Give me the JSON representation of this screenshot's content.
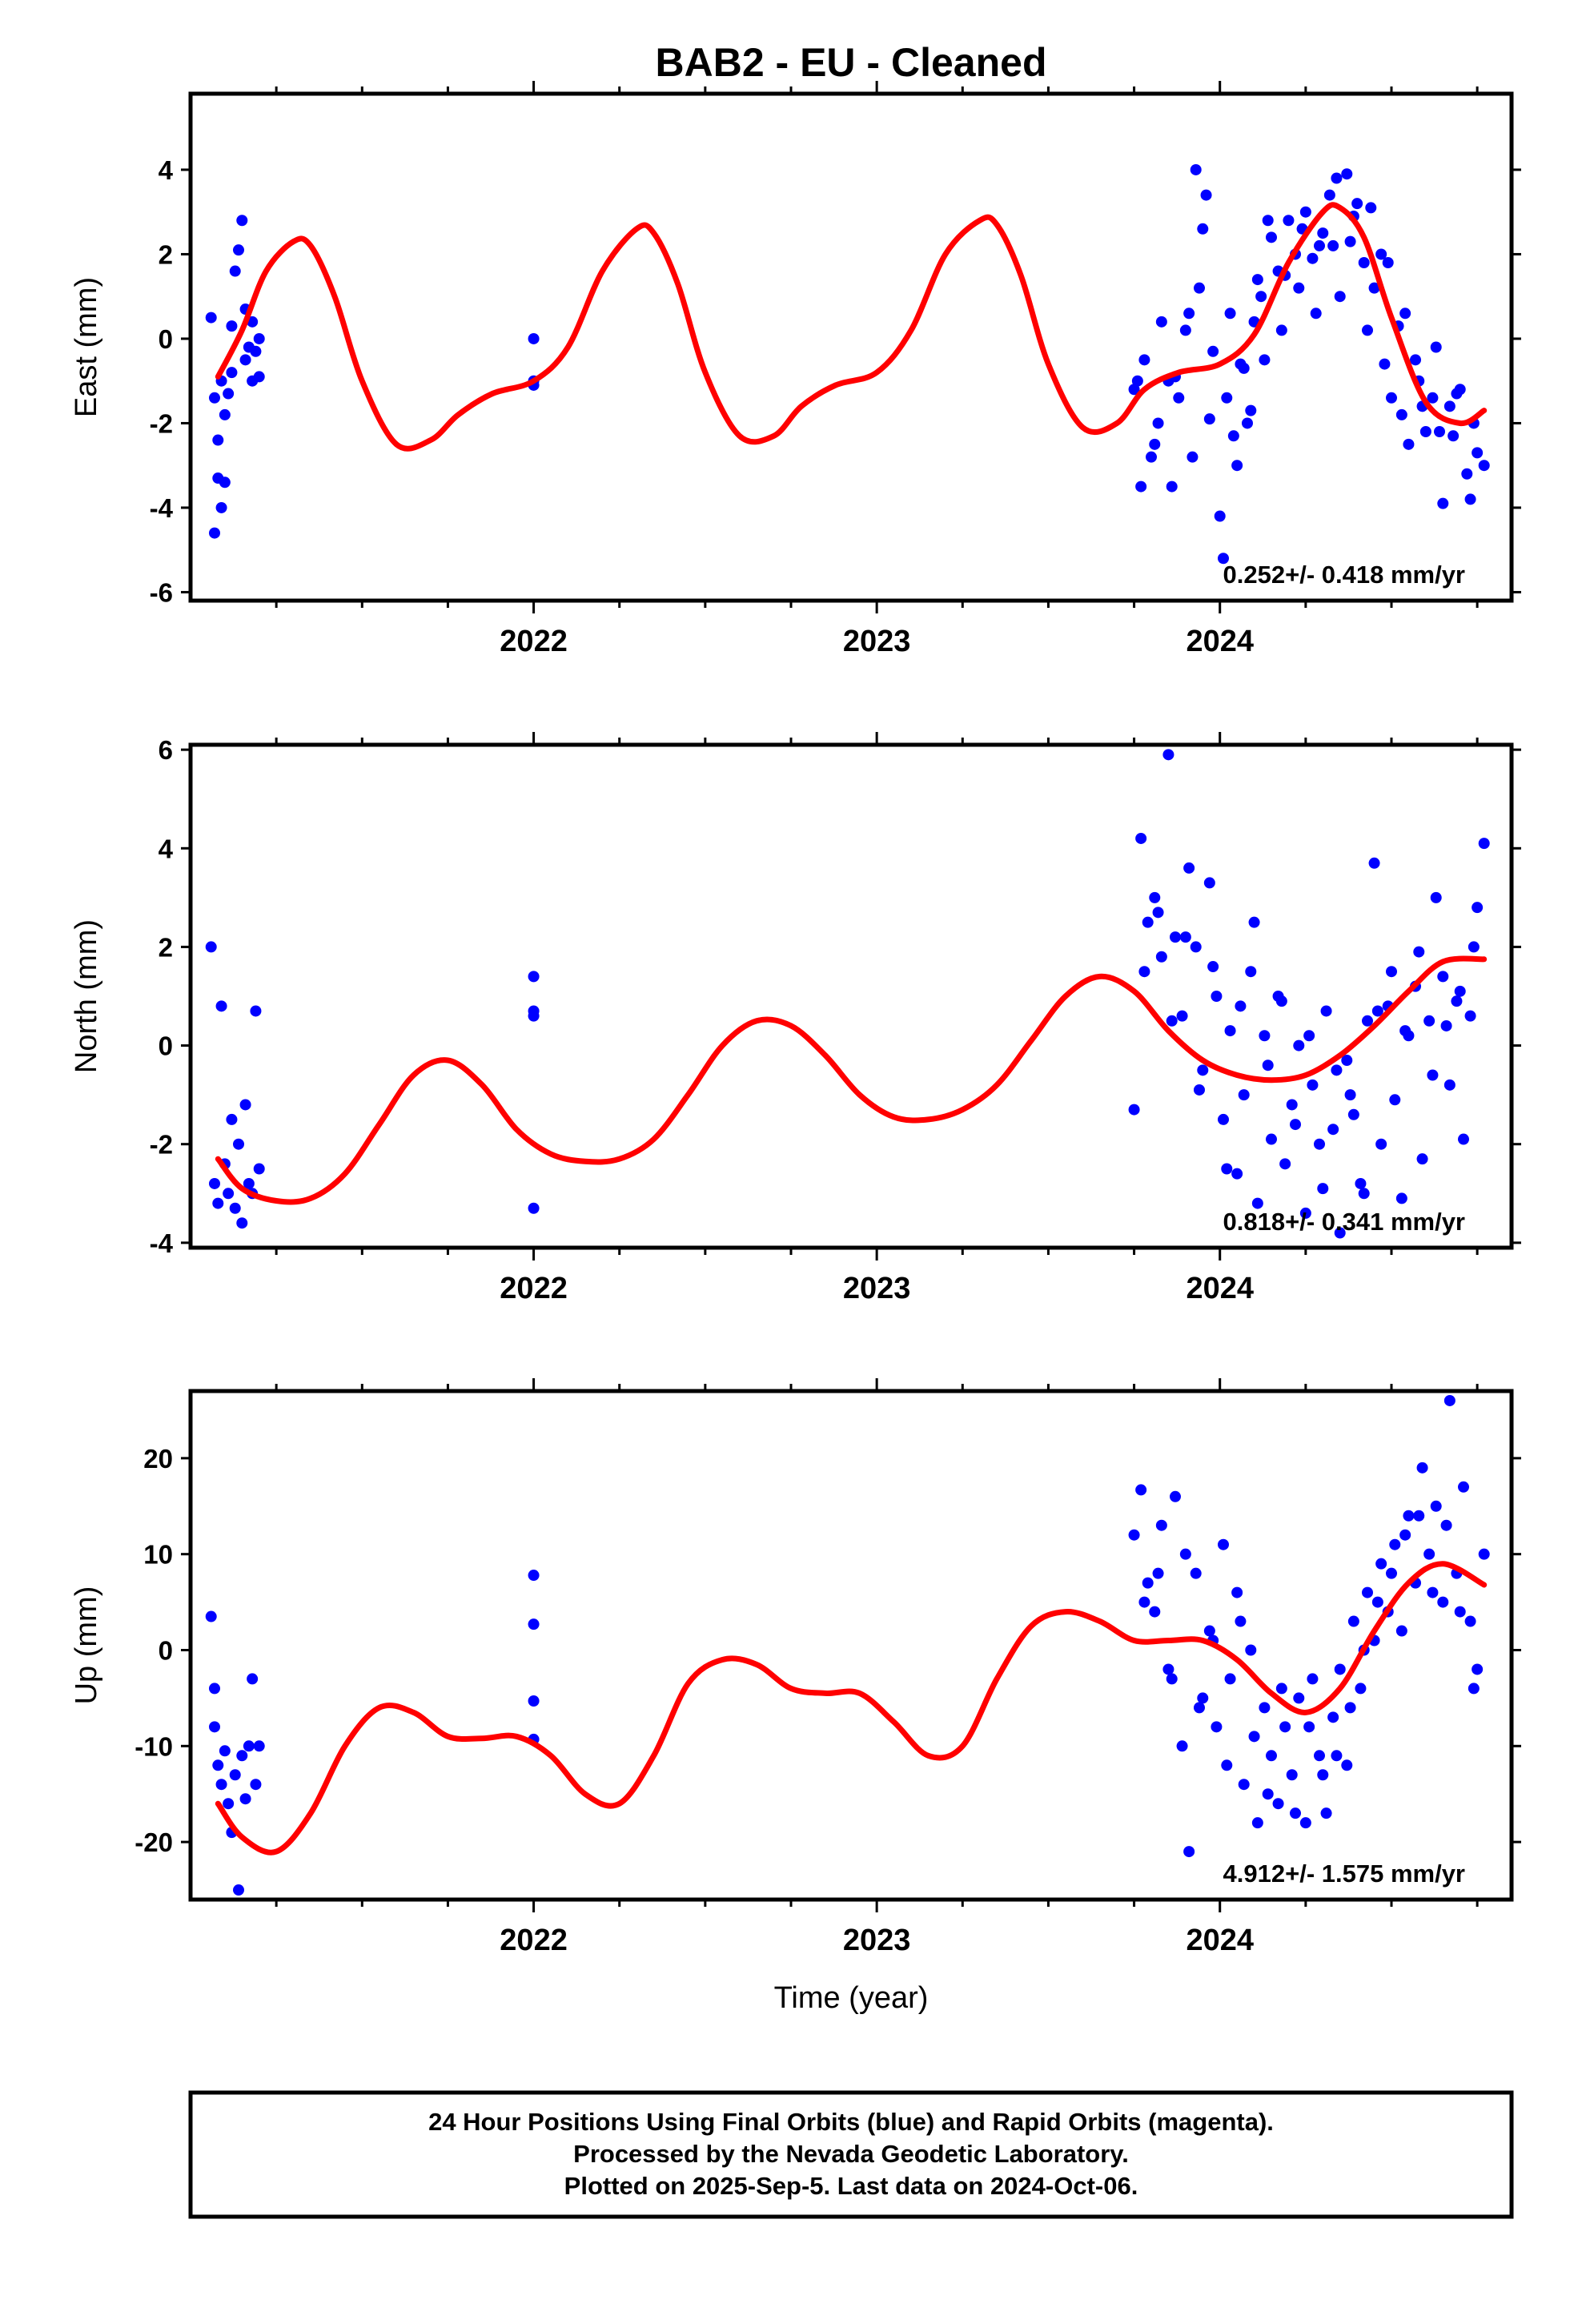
{
  "title": "BAB2  - EU - Cleaned",
  "xlabel": "Time (year)",
  "footer": {
    "line1": "24 Hour Positions Using Final Orbits (blue) and Rapid Orbits (magenta).",
    "line2": "Processed by the Nevada Geodetic Laboratory.",
    "line3": "Plotted on 2025-Sep-5. Last data on 2024-Oct-06."
  },
  "colors": {
    "final_orbits": "#0000ff",
    "fit": "#ff0000",
    "axes": "#000000"
  },
  "chart_data": [
    {
      "type": "scatter",
      "title": "BAB2  - EU - Cleaned",
      "ylabel": "East (mm)",
      "xlabel": "",
      "xlim": [
        2021.0,
        2024.85
      ],
      "ylim": [
        -6.2,
        5.8
      ],
      "xticks": [
        2022,
        2023,
        2024
      ],
      "yticks": [
        -6,
        -4,
        -2,
        0,
        2,
        4
      ],
      "rate": "0.252+/- 0.418 mm/yr",
      "fit": {
        "x": [
          2021.08,
          2021.15,
          2021.22,
          2021.3,
          2021.35,
          2021.42,
          2021.5,
          2021.6,
          2021.7,
          2021.78,
          2021.88,
          2022.0,
          2022.1,
          2022.2,
          2022.3,
          2022.35,
          2022.42,
          2022.5,
          2022.6,
          2022.7,
          2022.78,
          2022.88,
          2023.0,
          2023.1,
          2023.2,
          2023.3,
          2023.35,
          2023.42,
          2023.5,
          2023.6,
          2023.7,
          2023.78,
          2023.88,
          2024.0,
          2024.1,
          2024.2,
          2024.3,
          2024.35,
          2024.42,
          2024.5,
          2024.6,
          2024.7,
          2024.77
        ],
        "y": [
          -0.9,
          0.2,
          1.6,
          2.3,
          2.2,
          1.0,
          -1.0,
          -2.5,
          -2.4,
          -1.8,
          -1.3,
          -1.0,
          -0.2,
          1.6,
          2.6,
          2.5,
          1.3,
          -0.8,
          -2.3,
          -2.3,
          -1.6,
          -1.1,
          -0.8,
          0.2,
          2.0,
          2.8,
          2.7,
          1.5,
          -0.6,
          -2.1,
          -2.0,
          -1.2,
          -0.8,
          -0.6,
          0.1,
          1.8,
          3.0,
          3.1,
          2.4,
          0.5,
          -1.5,
          -2.0,
          -1.7
        ]
      },
      "points": {
        "x": [
          2021.06,
          2021.07,
          2021.07,
          2021.08,
          2021.08,
          2021.09,
          2021.09,
          2021.1,
          2021.1,
          2021.11,
          2021.12,
          2021.12,
          2021.13,
          2021.14,
          2021.15,
          2021.16,
          2021.16,
          2021.17,
          2021.18,
          2021.18,
          2021.19,
          2021.2,
          2021.2,
          2022.0,
          2022.0,
          2022.0,
          2023.75,
          2023.77,
          2023.78,
          2023.8,
          2023.82,
          2023.83,
          2023.85,
          2023.86,
          2023.88,
          2023.9,
          2023.92,
          2023.93,
          2023.95,
          2023.96,
          2023.98,
          2024.0,
          2024.02,
          2024.03,
          2024.05,
          2024.07,
          2024.08,
          2024.1,
          2024.12,
          2024.13,
          2024.15,
          2024.17,
          2024.18,
          2024.2,
          2024.22,
          2024.23,
          2024.25,
          2024.27,
          2024.28,
          2024.3,
          2024.32,
          2024.33,
          2024.35,
          2024.37,
          2024.38,
          2024.4,
          2024.42,
          2024.43,
          2024.45,
          2024.47,
          2024.48,
          2024.5,
          2024.52,
          2024.53,
          2024.55,
          2024.57,
          2024.58,
          2024.6,
          2024.62,
          2024.63,
          2024.65,
          2024.67,
          2024.68,
          2024.7,
          2024.72,
          2024.73,
          2024.75,
          2024.77,
          2023.76,
          2023.81,
          2023.87,
          2023.91,
          2023.94,
          2023.97,
          2024.01,
          2024.04,
          2024.06,
          2024.09,
          2024.11,
          2024.14,
          2024.19,
          2024.24,
          2024.29,
          2024.34,
          2024.39,
          2024.44,
          2024.49,
          2024.54,
          2024.59,
          2024.64,
          2024.69,
          2024.74
        ],
        "y": [
          0.5,
          -1.4,
          -4.6,
          -2.4,
          -3.3,
          -1.0,
          -4.0,
          -1.8,
          -3.4,
          -1.3,
          0.3,
          -0.8,
          1.6,
          2.1,
          2.8,
          -0.5,
          0.7,
          -0.2,
          -1.0,
          0.4,
          -0.3,
          0.0,
          -0.9,
          0.0,
          -1.0,
          -1.1,
          -1.2,
          -3.5,
          -0.5,
          -2.8,
          -2.0,
          0.4,
          -1.0,
          -3.5,
          -1.4,
          0.2,
          -2.8,
          4.0,
          2.6,
          3.4,
          -0.3,
          -4.2,
          -1.4,
          0.6,
          -3.0,
          -0.7,
          -2.0,
          0.4,
          1.0,
          -0.5,
          2.4,
          1.6,
          0.2,
          2.8,
          2.0,
          1.2,
          3.0,
          1.9,
          0.6,
          2.5,
          3.4,
          2.2,
          1.0,
          3.9,
          2.3,
          3.2,
          1.8,
          0.2,
          1.2,
          2.0,
          -0.6,
          -1.4,
          0.3,
          -1.8,
          -2.5,
          -0.5,
          -1.0,
          -2.2,
          -1.4,
          -0.2,
          -3.9,
          -1.6,
          -2.3,
          -1.2,
          -3.2,
          -3.8,
          -2.7,
          -3.0,
          -1.0,
          -2.5,
          -0.9,
          0.6,
          1.2,
          -1.9,
          -5.2,
          -2.3,
          -0.6,
          -1.7,
          1.4,
          2.8,
          1.5,
          2.6,
          2.2,
          3.8,
          2.9,
          3.1,
          1.8,
          0.6,
          -1.6,
          -2.2,
          -1.3,
          -2.0
        ]
      }
    },
    {
      "type": "scatter",
      "ylabel": "North (mm)",
      "xlabel": "",
      "xlim": [
        2021.0,
        2024.85
      ],
      "ylim": [
        -4.1,
        6.1
      ],
      "xticks": [
        2022,
        2023,
        2024
      ],
      "yticks": [
        -4,
        -2,
        0,
        2,
        4,
        6
      ],
      "rate": "0.818+/- 0.341 mm/yr",
      "fit": {
        "x": [
          2021.08,
          2021.15,
          2021.25,
          2021.35,
          2021.45,
          2021.55,
          2021.65,
          2021.75,
          2021.85,
          2021.95,
          2022.05,
          2022.15,
          2022.25,
          2022.35,
          2022.45,
          2022.55,
          2022.65,
          2022.75,
          2022.85,
          2022.95,
          2023.05,
          2023.15,
          2023.25,
          2023.35,
          2023.45,
          2023.55,
          2023.65,
          2023.75,
          2023.85,
          2023.95,
          2024.05,
          2024.15,
          2024.25,
          2024.35,
          2024.45,
          2024.55,
          2024.65,
          2024.77
        ],
        "y": [
          -2.3,
          -2.9,
          -3.15,
          -3.1,
          -2.6,
          -1.6,
          -0.6,
          -0.3,
          -0.8,
          -1.7,
          -2.2,
          -2.35,
          -2.3,
          -1.9,
          -1.0,
          0.0,
          0.5,
          0.4,
          -0.2,
          -1.0,
          -1.45,
          -1.5,
          -1.3,
          -0.8,
          0.1,
          1.0,
          1.4,
          1.1,
          0.3,
          -0.3,
          -0.6,
          -0.7,
          -0.6,
          -0.2,
          0.4,
          1.1,
          1.7,
          1.75
        ]
      },
      "points": {
        "x": [
          2021.06,
          2021.07,
          2021.08,
          2021.09,
          2021.1,
          2021.11,
          2021.12,
          2021.13,
          2021.14,
          2021.15,
          2021.16,
          2021.17,
          2021.18,
          2021.19,
          2021.2,
          2022.0,
          2022.0,
          2022.0,
          2022.0,
          2023.75,
          2023.77,
          2023.79,
          2023.81,
          2023.83,
          2023.85,
          2023.87,
          2023.89,
          2023.91,
          2023.93,
          2023.95,
          2023.97,
          2023.99,
          2024.01,
          2024.03,
          2024.05,
          2024.07,
          2024.09,
          2024.11,
          2024.13,
          2024.15,
          2024.17,
          2024.19,
          2024.21,
          2024.23,
          2024.25,
          2024.27,
          2024.29,
          2024.31,
          2024.33,
          2024.35,
          2024.37,
          2024.39,
          2024.41,
          2024.43,
          2024.45,
          2024.47,
          2024.49,
          2024.51,
          2024.53,
          2024.55,
          2024.57,
          2024.59,
          2024.61,
          2024.63,
          2024.65,
          2024.67,
          2024.69,
          2024.71,
          2024.73,
          2024.75,
          2024.77,
          2023.78,
          2023.82,
          2023.86,
          2023.9,
          2023.94,
          2023.98,
          2024.02,
          2024.06,
          2024.1,
          2024.14,
          2024.18,
          2024.22,
          2024.26,
          2024.3,
          2024.34,
          2024.38,
          2024.42,
          2024.46,
          2024.5,
          2024.54,
          2024.58,
          2024.62,
          2024.66,
          2024.7,
          2024.74
        ],
        "y": [
          2.0,
          -2.8,
          -3.2,
          0.8,
          -2.4,
          -3.0,
          -1.5,
          -3.3,
          -2.0,
          -3.6,
          -1.2,
          -2.8,
          -3.0,
          0.7,
          -2.5,
          1.4,
          0.7,
          0.6,
          -3.3,
          -1.3,
          4.2,
          2.5,
          3.0,
          1.8,
          5.9,
          2.2,
          0.6,
          3.6,
          2.0,
          -0.5,
          3.3,
          1.0,
          -1.5,
          0.3,
          -2.6,
          -1.0,
          1.5,
          -3.2,
          0.2,
          -1.9,
          1.0,
          -2.4,
          -1.2,
          0.0,
          -3.4,
          -0.8,
          -2.0,
          0.7,
          -1.7,
          -3.8,
          -0.3,
          -1.4,
          -2.8,
          0.5,
          3.7,
          -2.0,
          0.8,
          -1.1,
          -3.1,
          0.2,
          1.2,
          -2.3,
          0.5,
          3.0,
          1.4,
          -0.8,
          0.9,
          -1.9,
          0.6,
          2.8,
          4.1,
          1.5,
          2.7,
          0.5,
          2.2,
          -0.9,
          1.6,
          -2.5,
          0.8,
          2.5,
          -0.4,
          0.9,
          -1.6,
          0.2,
          -2.9,
          -0.5,
          -1.0,
          -3.0,
          0.7,
          1.5,
          0.3,
          1.9,
          -0.6,
          0.4,
          1.1,
          2.0
        ]
      }
    },
    {
      "type": "scatter",
      "ylabel": "Up (mm)",
      "xlabel": "Time (year)",
      "xlim": [
        2021.0,
        2024.85
      ],
      "ylim": [
        -26.0,
        27.0
      ],
      "xticks": [
        2022,
        2023,
        2024
      ],
      "yticks": [
        -20,
        -10,
        0,
        10,
        20
      ],
      "rate": "4.912+/- 1.575 mm/yr",
      "fit": {
        "x": [
          2021.08,
          2021.15,
          2021.25,
          2021.35,
          2021.45,
          2021.55,
          2021.65,
          2021.75,
          2021.85,
          2021.95,
          2022.05,
          2022.15,
          2022.25,
          2022.35,
          2022.45,
          2022.55,
          2022.65,
          2022.75,
          2022.85,
          2022.95,
          2023.05,
          2023.15,
          2023.25,
          2023.35,
          2023.45,
          2023.55,
          2023.65,
          2023.75,
          2023.85,
          2023.95,
          2024.05,
          2024.15,
          2024.25,
          2024.35,
          2024.45,
          2024.55,
          2024.65,
          2024.77
        ],
        "y": [
          -16.0,
          -19.5,
          -21.0,
          -17.0,
          -10.0,
          -6.0,
          -6.5,
          -9.0,
          -9.2,
          -9.0,
          -11.0,
          -15.0,
          -16.0,
          -11.0,
          -3.5,
          -1.0,
          -1.5,
          -4.0,
          -4.5,
          -4.5,
          -7.5,
          -11.0,
          -10.0,
          -3.0,
          2.5,
          4.0,
          3.0,
          1.0,
          1.0,
          1.0,
          -1.0,
          -4.5,
          -6.5,
          -4.0,
          2.0,
          7.0,
          9.0,
          6.8
        ]
      },
      "points": {
        "x": [
          2021.06,
          2021.07,
          2021.07,
          2021.08,
          2021.09,
          2021.1,
          2021.11,
          2021.12,
          2021.13,
          2021.14,
          2021.15,
          2021.16,
          2021.17,
          2021.18,
          2021.19,
          2021.2,
          2022.0,
          2022.0,
          2022.0,
          2022.0,
          2023.75,
          2023.77,
          2023.79,
          2023.81,
          2023.83,
          2023.85,
          2023.87,
          2023.89,
          2023.91,
          2023.93,
          2023.95,
          2023.97,
          2023.99,
          2024.01,
          2024.03,
          2024.05,
          2024.07,
          2024.09,
          2024.11,
          2024.13,
          2024.15,
          2024.17,
          2024.19,
          2024.21,
          2024.23,
          2024.25,
          2024.27,
          2024.29,
          2024.31,
          2024.33,
          2024.35,
          2024.37,
          2024.39,
          2024.41,
          2024.43,
          2024.45,
          2024.47,
          2024.49,
          2024.51,
          2024.53,
          2024.55,
          2024.57,
          2024.59,
          2024.61,
          2024.63,
          2024.65,
          2024.67,
          2024.69,
          2024.71,
          2024.73,
          2024.75,
          2024.77,
          2023.78,
          2023.82,
          2023.86,
          2023.9,
          2023.94,
          2023.98,
          2024.02,
          2024.06,
          2024.1,
          2024.14,
          2024.18,
          2024.22,
          2024.26,
          2024.3,
          2024.34,
          2024.38,
          2024.42,
          2024.46,
          2024.5,
          2024.54,
          2024.58,
          2024.62,
          2024.66,
          2024.7,
          2024.74
        ],
        "y": [
          3.5,
          -4.0,
          -8.0,
          -12.0,
          -14.0,
          -10.5,
          -16.0,
          -19.0,
          -13.0,
          -25.0,
          -11.0,
          -15.5,
          -10.0,
          -3.0,
          -14.0,
          -10.0,
          7.8,
          2.7,
          -5.3,
          -9.3,
          12.0,
          16.7,
          7.0,
          4.0,
          13.0,
          -2.0,
          16.0,
          -10.0,
          -21.0,
          8.0,
          -5.0,
          2.0,
          -8.0,
          11.0,
          -3.0,
          6.0,
          -14.0,
          0.0,
          -18.0,
          -6.0,
          -11.0,
          -16.0,
          -8.0,
          -13.0,
          -5.0,
          -18.0,
          -3.0,
          -11.0,
          -17.0,
          -7.0,
          -2.0,
          -12.0,
          3.0,
          -4.0,
          6.0,
          1.0,
          9.0,
          4.0,
          11.0,
          2.0,
          14.0,
          7.0,
          19.0,
          10.0,
          15.0,
          5.0,
          26.0,
          8.0,
          17.0,
          3.0,
          -2.0,
          10.0,
          5.0,
          8.0,
          -3.0,
          10.0,
          -6.0,
          1.0,
          -12.0,
          3.0,
          -9.0,
          -15.0,
          -4.0,
          -17.0,
          -8.0,
          -13.0,
          -11.0,
          -6.0,
          0.0,
          5.0,
          8.0,
          12.0,
          14.0,
          6.0,
          13.0,
          4.0,
          -4.0
        ]
      }
    }
  ]
}
